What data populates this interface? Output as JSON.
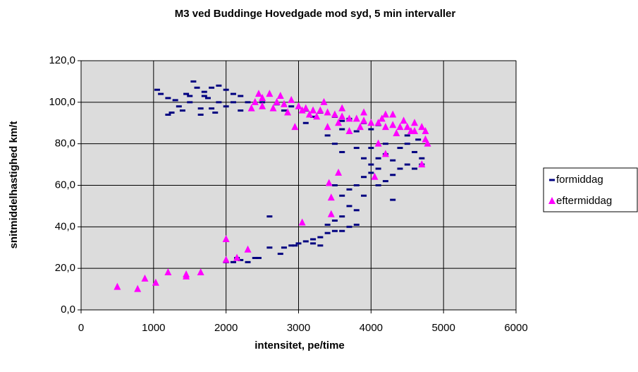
{
  "chart_data": {
    "type": "scatter",
    "title": "M3 ved Buddinge Hovedgade mod syd, 5 min intervaller",
    "x_label": "intensitet, pe/time",
    "y_label": "snitmiddelhastighed km/t",
    "xlim": [
      0,
      6000
    ],
    "xticks": [
      0,
      1000,
      2000,
      3000,
      4000,
      5000,
      6000
    ],
    "ylim": [
      0,
      120
    ],
    "yticks": [
      {
        "value": 0,
        "label": "0,0"
      },
      {
        "value": 20,
        "label": "20,0"
      },
      {
        "value": 40,
        "label": "40,0"
      },
      {
        "value": 60,
        "label": "60,0"
      },
      {
        "value": 80,
        "label": "80,0"
      },
      {
        "value": 100,
        "label": "100,0"
      },
      {
        "value": 120,
        "label": "120,0"
      }
    ],
    "grid": true,
    "legend": "right",
    "series": [
      {
        "name": "formiddag",
        "color": "#000080",
        "marker": "dash",
        "x": [
          2000,
          2100,
          2150,
          2200,
          2300,
          2400,
          2450,
          2600,
          2750,
          2800,
          2900,
          2950,
          3000,
          3100,
          3200,
          3300,
          3400,
          3500,
          3600,
          3700,
          3800,
          2600,
          3300,
          3200,
          1050,
          1100,
          1200,
          1300,
          1250,
          1400,
          1500,
          1600,
          1700,
          1800,
          1900,
          2000,
          2100,
          2200,
          2300,
          1550,
          1350,
          1800,
          1650,
          1200,
          2000,
          1900,
          1700,
          1500,
          1650,
          1850,
          2100,
          2200,
          1750,
          1450,
          2500,
          2700,
          2900,
          3100,
          3300,
          3500,
          3700,
          3900,
          4100,
          2800,
          3200,
          3600,
          4000,
          3400,
          3800,
          3100,
          3600,
          3500,
          3600,
          3800,
          3900,
          4000,
          4100,
          4200,
          4300,
          4400,
          4500,
          4600,
          4700,
          4650,
          4300,
          4200,
          4100,
          4500,
          4400,
          4000,
          3900,
          3800,
          3700,
          3600,
          3700,
          3800,
          3600,
          3500,
          3400,
          3500,
          4300,
          4600,
          4700,
          4200,
          4000,
          3900,
          4100,
          4500
        ],
        "values": [
          23,
          23,
          25,
          24,
          23,
          25,
          25,
          30,
          27,
          30,
          31,
          31,
          32,
          33,
          34,
          35,
          37,
          38,
          38,
          40,
          41,
          45,
          31,
          32,
          106,
          104,
          102,
          101,
          95,
          96,
          103,
          107,
          105,
          107,
          108,
          106,
          104,
          103,
          100,
          110,
          98,
          97,
          97,
          94,
          98,
          100,
          103,
          100,
          94,
          95,
          100,
          96,
          102,
          104,
          100,
          99,
          98,
          96,
          95,
          93,
          92,
          90,
          89,
          96,
          93,
          91,
          87,
          84,
          86,
          90,
          87,
          80,
          76,
          78,
          73,
          70,
          68,
          75,
          72,
          78,
          80,
          76,
          73,
          82,
          65,
          62,
          60,
          70,
          68,
          66,
          64,
          60,
          58,
          55,
          50,
          48,
          45,
          43,
          41,
          60,
          53,
          68,
          70,
          80,
          78,
          55,
          73,
          84
        ]
      },
      {
        "name": "eftermiddag",
        "color": "#ff00ff",
        "marker": "triangle",
        "x": [
          500,
          780,
          880,
          1030,
          1200,
          1450,
          1450,
          1650,
          2000,
          2000,
          2150,
          2300,
          3050,
          3420,
          3450,
          3450,
          3550,
          3400,
          2950,
          2350,
          2400,
          2500,
          2600,
          2700,
          2800,
          2900,
          3000,
          3100,
          3200,
          3300,
          3400,
          3500,
          3600,
          3700,
          3800,
          3900,
          4000,
          4100,
          4200,
          4300,
          4400,
          4500,
          4600,
          4700,
          4750,
          4750,
          4780,
          4700,
          4300,
          4200,
          4050,
          4100,
          3700,
          2650,
          2850,
          3150,
          3350,
          3600,
          3900,
          4150,
          4450,
          4600,
          2500,
          2750,
          3050,
          3250,
          3550,
          3850,
          4350,
          4550,
          4200,
          2450
        ],
        "values": [
          11,
          10,
          15,
          13,
          18,
          16,
          17,
          18,
          34,
          24,
          25,
          29,
          42,
          61,
          54,
          46,
          66,
          88,
          88,
          97,
          100,
          102,
          104,
          100,
          99,
          101,
          98,
          97,
          96,
          96,
          95,
          94,
          93,
          92,
          92,
          91,
          90,
          90,
          88,
          89,
          88,
          88,
          86,
          88,
          86,
          82,
          80,
          70,
          94,
          75,
          64,
          80,
          86,
          97,
          95,
          94,
          100,
          97,
          95,
          92,
          91,
          90,
          98,
          103,
          96,
          93,
          90,
          88,
          85,
          86,
          94,
          104
        ]
      }
    ]
  }
}
